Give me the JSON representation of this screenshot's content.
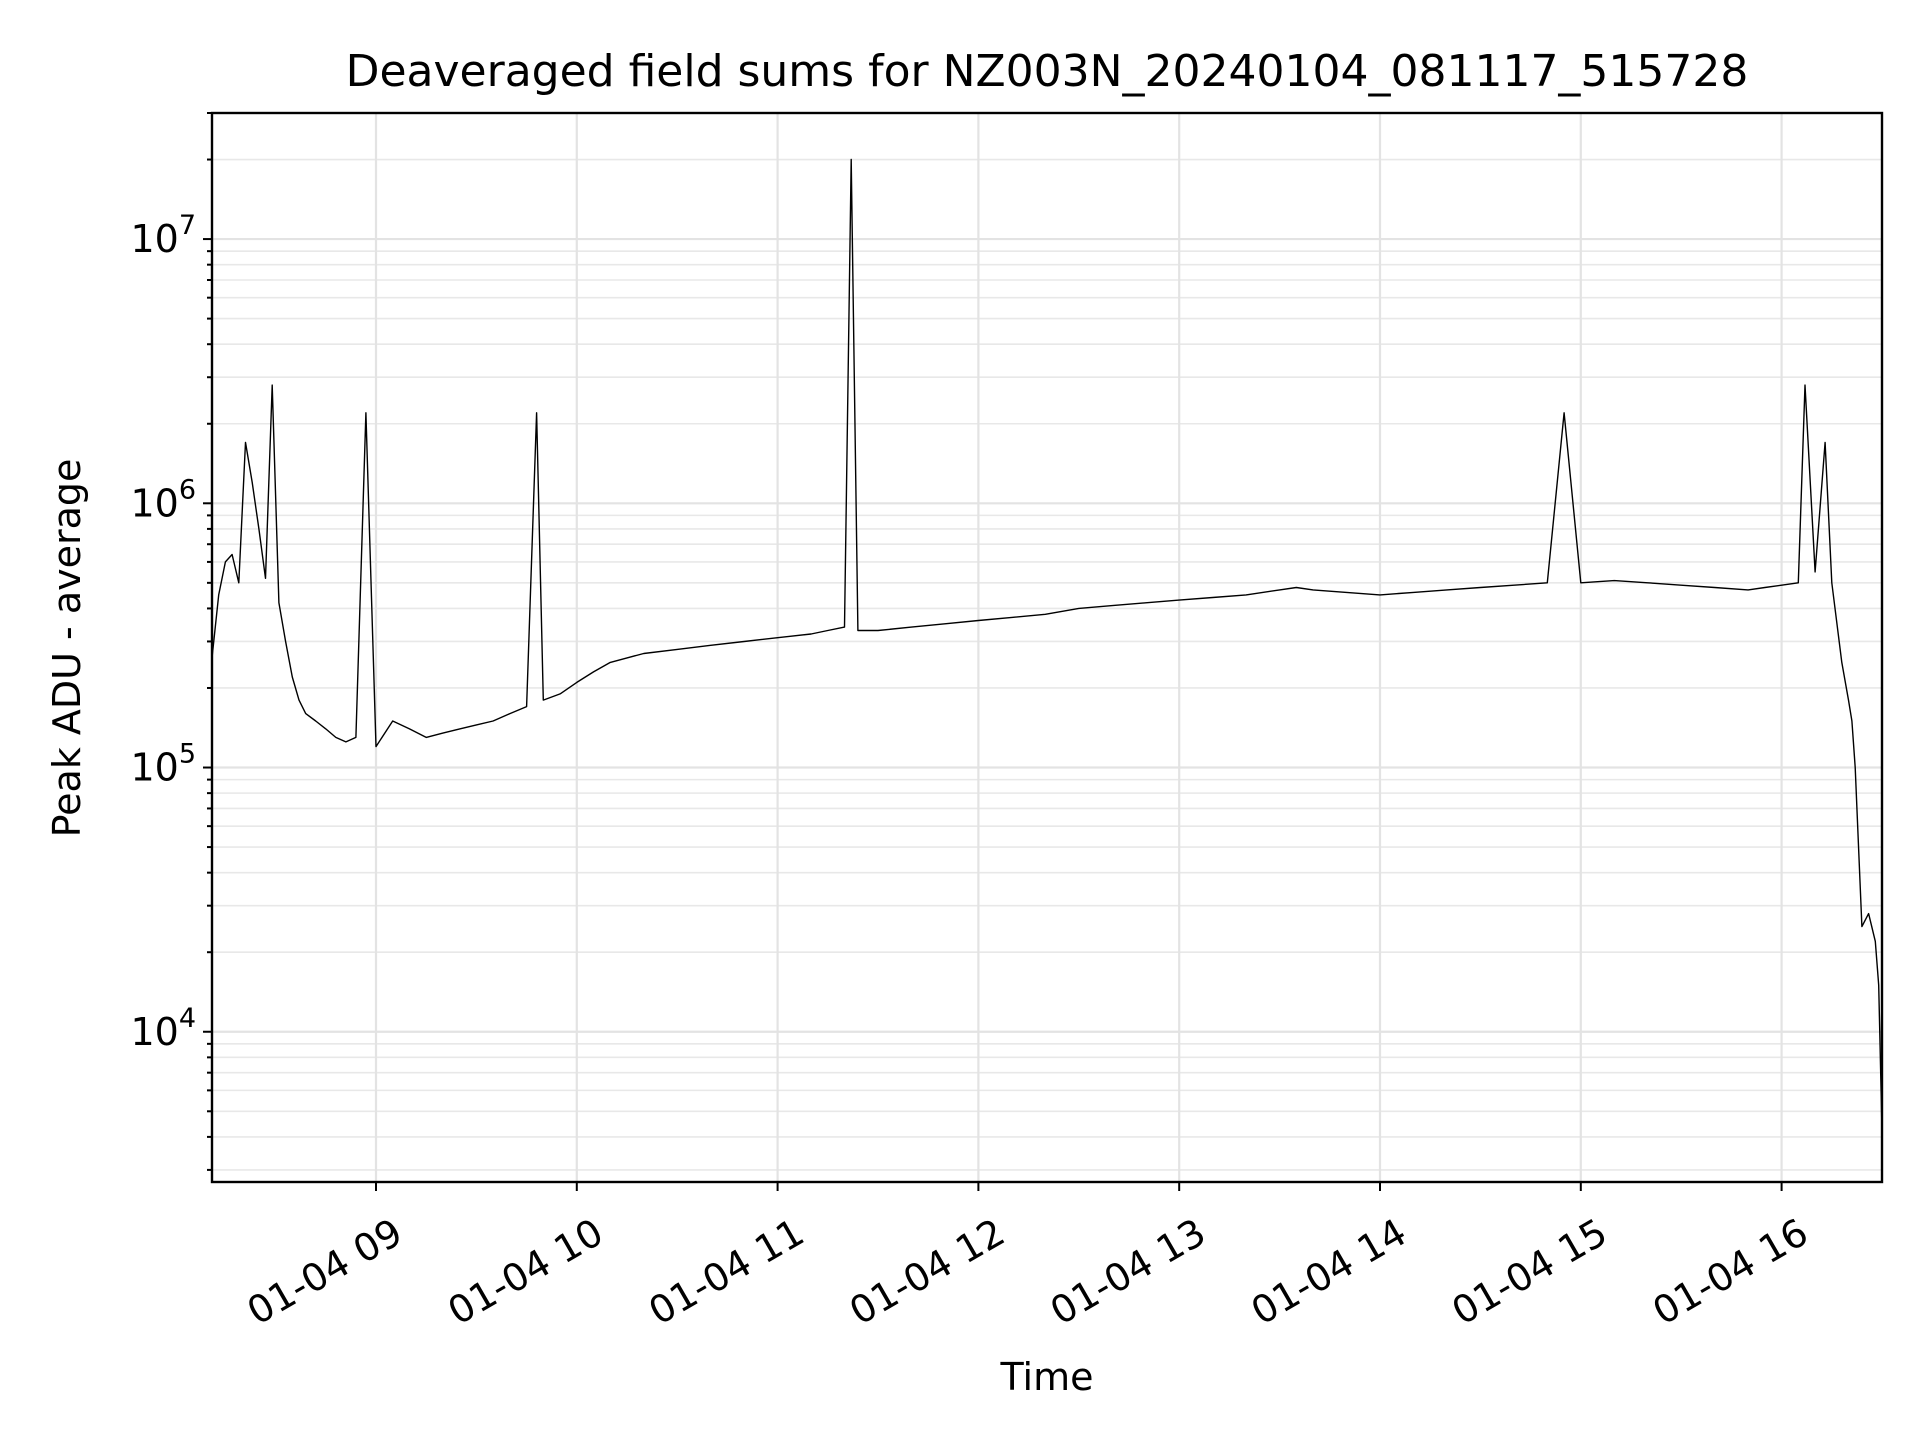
{
  "chart_data": {
    "type": "line",
    "title": "Deaveraged field sums for NZ003N_20240104_081117_515728",
    "xlabel": "Time",
    "ylabel": "Peak ADU - average",
    "yscale": "log",
    "grid": true,
    "grid_minor_y": true,
    "xlim": [
      "2024-01-04 08:11",
      "2024-01-04 16:30"
    ],
    "ylim": [
      2700,
      30000000
    ],
    "x_ticks": [
      {
        "value": "2024-01-04 09:00",
        "label": "01-04 09"
      },
      {
        "value": "2024-01-04 10:00",
        "label": "01-04 10"
      },
      {
        "value": "2024-01-04 11:00",
        "label": "01-04 11"
      },
      {
        "value": "2024-01-04 12:00",
        "label": "01-04 12"
      },
      {
        "value": "2024-01-04 13:00",
        "label": "01-04 13"
      },
      {
        "value": "2024-01-04 14:00",
        "label": "01-04 14"
      },
      {
        "value": "2024-01-04 15:00",
        "label": "01-04 15"
      },
      {
        "value": "2024-01-04 16:00",
        "label": "01-04 16"
      }
    ],
    "y_ticks": [
      {
        "value": 10000,
        "base": "10",
        "exp": "4"
      },
      {
        "value": 100000,
        "base": "10",
        "exp": "5"
      },
      {
        "value": 1000000,
        "base": "10",
        "exp": "6"
      },
      {
        "value": 10000000,
        "base": "10",
        "exp": "7"
      }
    ],
    "line_color": "#000000",
    "series": [
      {
        "style": "dense noisy time series",
        "x": [
          "2024-01-04 08:11",
          "2024-01-04 08:13",
          "2024-01-04 08:15",
          "2024-01-04 08:17",
          "2024-01-04 08:19",
          "2024-01-04 08:21",
          "2024-01-04 08:23",
          "2024-01-04 08:25",
          "2024-01-04 08:27",
          "2024-01-04 08:29",
          "2024-01-04 08:31",
          "2024-01-04 08:33",
          "2024-01-04 08:35",
          "2024-01-04 08:37",
          "2024-01-04 08:39",
          "2024-01-04 08:42",
          "2024-01-04 08:45",
          "2024-01-04 08:48",
          "2024-01-04 08:51",
          "2024-01-04 08:54",
          "2024-01-04 08:57",
          "2024-01-04 09:00",
          "2024-01-04 09:05",
          "2024-01-04 09:10",
          "2024-01-04 09:15",
          "2024-01-04 09:20",
          "2024-01-04 09:25",
          "2024-01-04 09:30",
          "2024-01-04 09:35",
          "2024-01-04 09:40",
          "2024-01-04 09:45",
          "2024-01-04 09:48",
          "2024-01-04 09:50",
          "2024-01-04 09:55",
          "2024-01-04 10:00",
          "2024-01-04 10:05",
          "2024-01-04 10:10",
          "2024-01-04 10:15",
          "2024-01-04 10:20",
          "2024-01-04 10:30",
          "2024-01-04 10:40",
          "2024-01-04 10:50",
          "2024-01-04 11:00",
          "2024-01-04 11:10",
          "2024-01-04 11:15",
          "2024-01-04 11:20",
          "2024-01-04 11:22",
          "2024-01-04 11:24",
          "2024-01-04 11:30",
          "2024-01-04 11:40",
          "2024-01-04 11:50",
          "2024-01-04 12:00",
          "2024-01-04 12:10",
          "2024-01-04 12:20",
          "2024-01-04 12:30",
          "2024-01-04 12:40",
          "2024-01-04 12:50",
          "2024-01-04 13:00",
          "2024-01-04 13:10",
          "2024-01-04 13:20",
          "2024-01-04 13:30",
          "2024-01-04 13:35",
          "2024-01-04 13:40",
          "2024-01-04 13:50",
          "2024-01-04 14:00",
          "2024-01-04 14:10",
          "2024-01-04 14:20",
          "2024-01-04 14:30",
          "2024-01-04 14:40",
          "2024-01-04 14:50",
          "2024-01-04 14:55",
          "2024-01-04 15:00",
          "2024-01-04 15:10",
          "2024-01-04 15:20",
          "2024-01-04 15:30",
          "2024-01-04 15:40",
          "2024-01-04 15:50",
          "2024-01-04 15:55",
          "2024-01-04 16:00",
          "2024-01-04 16:05",
          "2024-01-04 16:07",
          "2024-01-04 16:10",
          "2024-01-04 16:13",
          "2024-01-04 16:15",
          "2024-01-04 16:18",
          "2024-01-04 16:20",
          "2024-01-04 16:21",
          "2024-01-04 16:22",
          "2024-01-04 16:24",
          "2024-01-04 16:26",
          "2024-01-04 16:28",
          "2024-01-04 16:29",
          "2024-01-04 16:30"
        ],
        "y": [
          260000,
          450000,
          600000,
          640000,
          500000,
          1700000,
          1200000,
          800000,
          520000,
          2800000,
          420000,
          300000,
          220000,
          180000,
          160000,
          150000,
          140000,
          130000,
          125000,
          130000,
          2200000,
          120000,
          150000,
          140000,
          130000,
          135000,
          140000,
          145000,
          150000,
          160000,
          170000,
          2200000,
          180000,
          190000,
          210000,
          230000,
          250000,
          260000,
          270000,
          280000,
          290000,
          300000,
          310000,
          320000,
          330000,
          340000,
          20000000,
          330000,
          330000,
          340000,
          350000,
          360000,
          370000,
          380000,
          400000,
          410000,
          420000,
          430000,
          440000,
          450000,
          470000,
          480000,
          470000,
          460000,
          450000,
          460000,
          470000,
          480000,
          490000,
          500000,
          2200000,
          500000,
          510000,
          500000,
          490000,
          480000,
          470000,
          480000,
          490000,
          500000,
          2800000,
          550000,
          1700000,
          500000,
          250000,
          180000,
          150000,
          100000,
          25000,
          28000,
          22000,
          15000,
          4200
        ]
      }
    ]
  }
}
